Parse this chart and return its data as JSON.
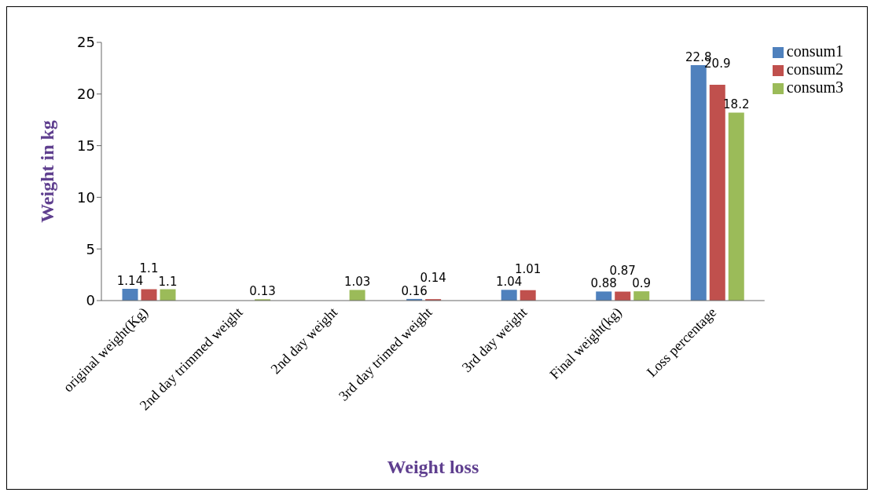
{
  "chart_data": {
    "type": "bar",
    "xlabel": "Weight loss",
    "ylabel": "Weight in kg",
    "categories": [
      "original weight(Kg)",
      "2nd day trimmed weight",
      "2nd day weight",
      "3rd day trimed weight",
      "3rd day weight",
      "Final weight(kg)",
      "Loss percentage"
    ],
    "series": [
      {
        "name": "consum1",
        "color": "#4f81bd",
        "values": [
          1.14,
          null,
          null,
          0.16,
          1.04,
          0.88,
          22.8
        ]
      },
      {
        "name": "consum2",
        "color": "#c0504d",
        "values": [
          1.1,
          null,
          null,
          0.14,
          1.01,
          0.87,
          20.9
        ]
      },
      {
        "name": "consum3",
        "color": "#9bbb59",
        "values": [
          1.1,
          0.13,
          1.03,
          null,
          null,
          0.9,
          18.2
        ]
      }
    ],
    "ylim": [
      0,
      25
    ],
    "yticks": [
      0,
      5,
      10,
      15,
      20,
      25
    ],
    "grid": false,
    "legend": "right",
    "data_labels": true
  }
}
